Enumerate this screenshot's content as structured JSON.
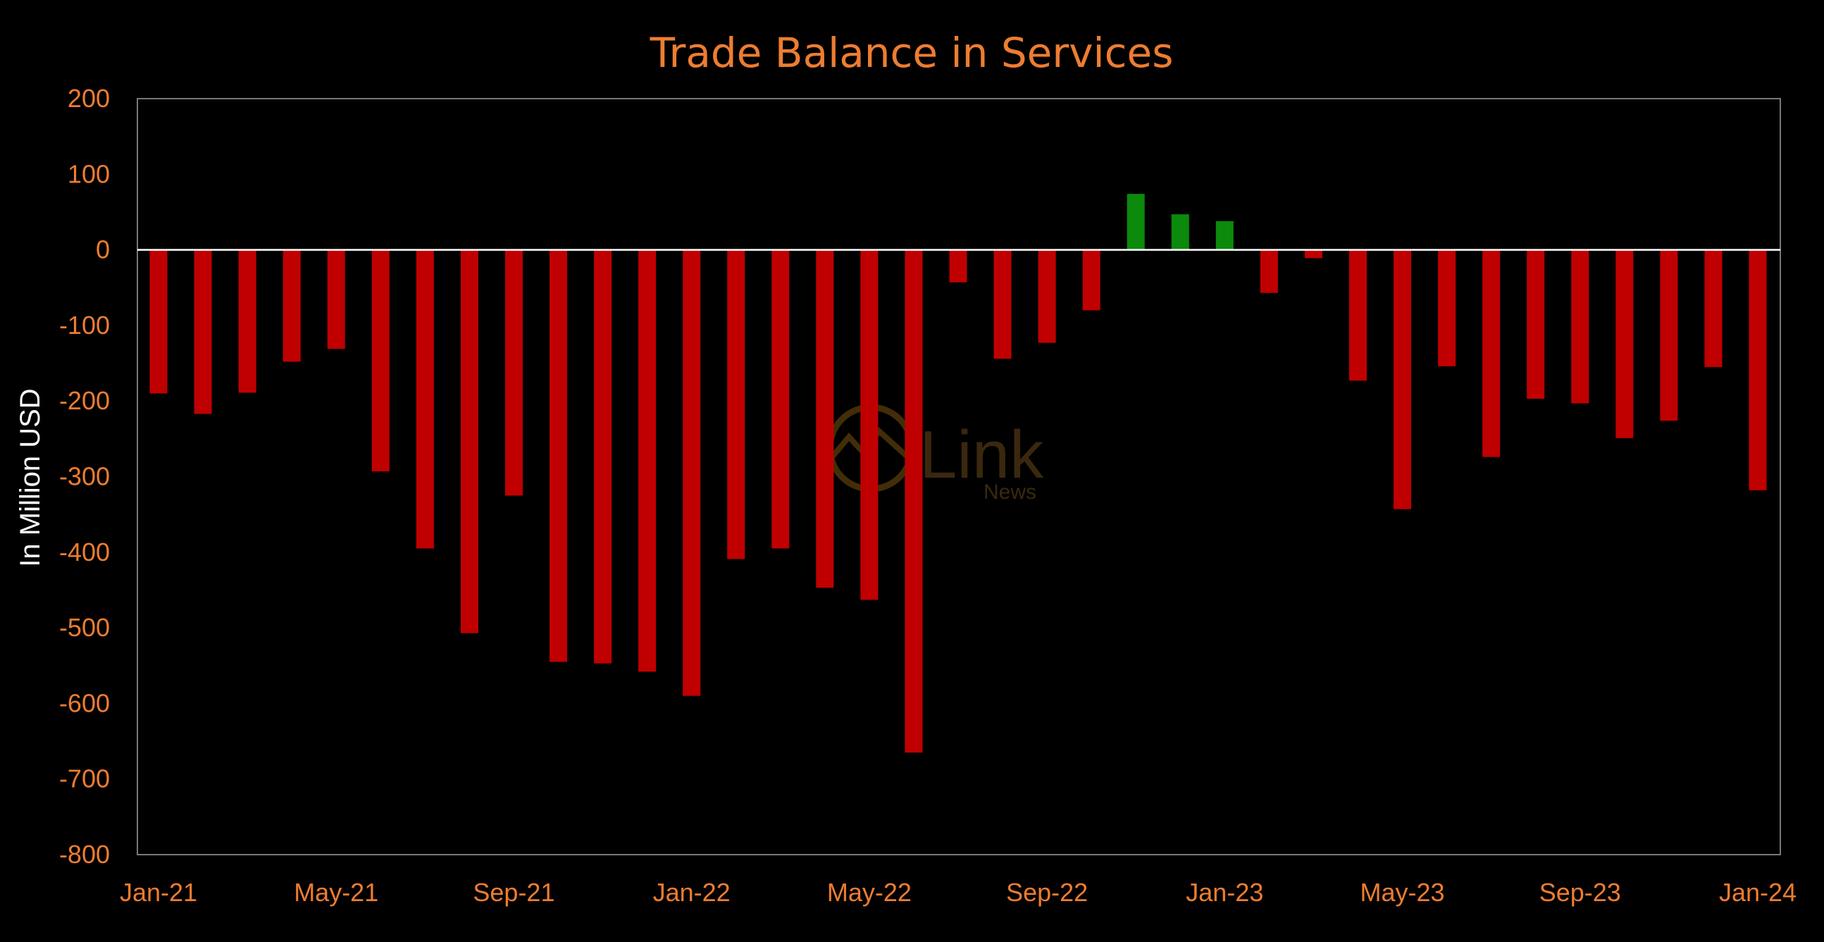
{
  "chart_data": {
    "type": "bar",
    "title": "Trade Balance in Services",
    "xlabel": "",
    "ylabel": "In Million USD",
    "ylim": [
      -800,
      200
    ],
    "yticks": [
      200,
      100,
      0,
      -100,
      -200,
      -300,
      -400,
      -500,
      -600,
      -700,
      -800
    ],
    "xtick_labels": [
      "Jan-21",
      "May-21",
      "Sep-21",
      "Jan-22",
      "May-22",
      "Sep-22",
      "Jan-23",
      "May-23",
      "Sep-23",
      "Jan-24"
    ],
    "categories": [
      "Jan-21",
      "Feb-21",
      "Mar-21",
      "Apr-21",
      "May-21",
      "Jun-21",
      "Jul-21",
      "Aug-21",
      "Sep-21",
      "Oct-21",
      "Nov-21",
      "Dec-21",
      "Jan-22",
      "Feb-22",
      "Mar-22",
      "Apr-22",
      "May-22",
      "Jun-22",
      "Jul-22",
      "Aug-22",
      "Sep-22",
      "Oct-22",
      "Nov-22",
      "Dec-22",
      "Jan-23",
      "Feb-23",
      "Mar-23",
      "Apr-23",
      "May-23",
      "Jun-23",
      "Jul-23",
      "Aug-23",
      "Sep-23",
      "Oct-23",
      "Nov-23",
      "Dec-23",
      "Jan-24"
    ],
    "values": [
      -190,
      -217,
      -189,
      -148,
      -131,
      -293,
      -395,
      -507,
      -325,
      -545,
      -547,
      -558,
      -590,
      -409,
      -395,
      -447,
      -463,
      -665,
      -43,
      -144,
      -123,
      -80,
      74,
      47,
      38,
      -57,
      -11,
      -173,
      -343,
      -154,
      -274,
      -197,
      -203,
      -249,
      -226,
      -155,
      -318
    ],
    "colors": {
      "positive": "#0B8A0B",
      "negative": "#C00000"
    },
    "grid": false,
    "legend": "none"
  },
  "colors": {
    "background": "#000000",
    "accent": "#ED7D31",
    "axis_frame": "#A0A0A0",
    "zero_line": "#FFFFFF"
  },
  "watermark": {
    "brand": "Link",
    "sub": "News",
    "icon": "mountain-circle-logo"
  }
}
